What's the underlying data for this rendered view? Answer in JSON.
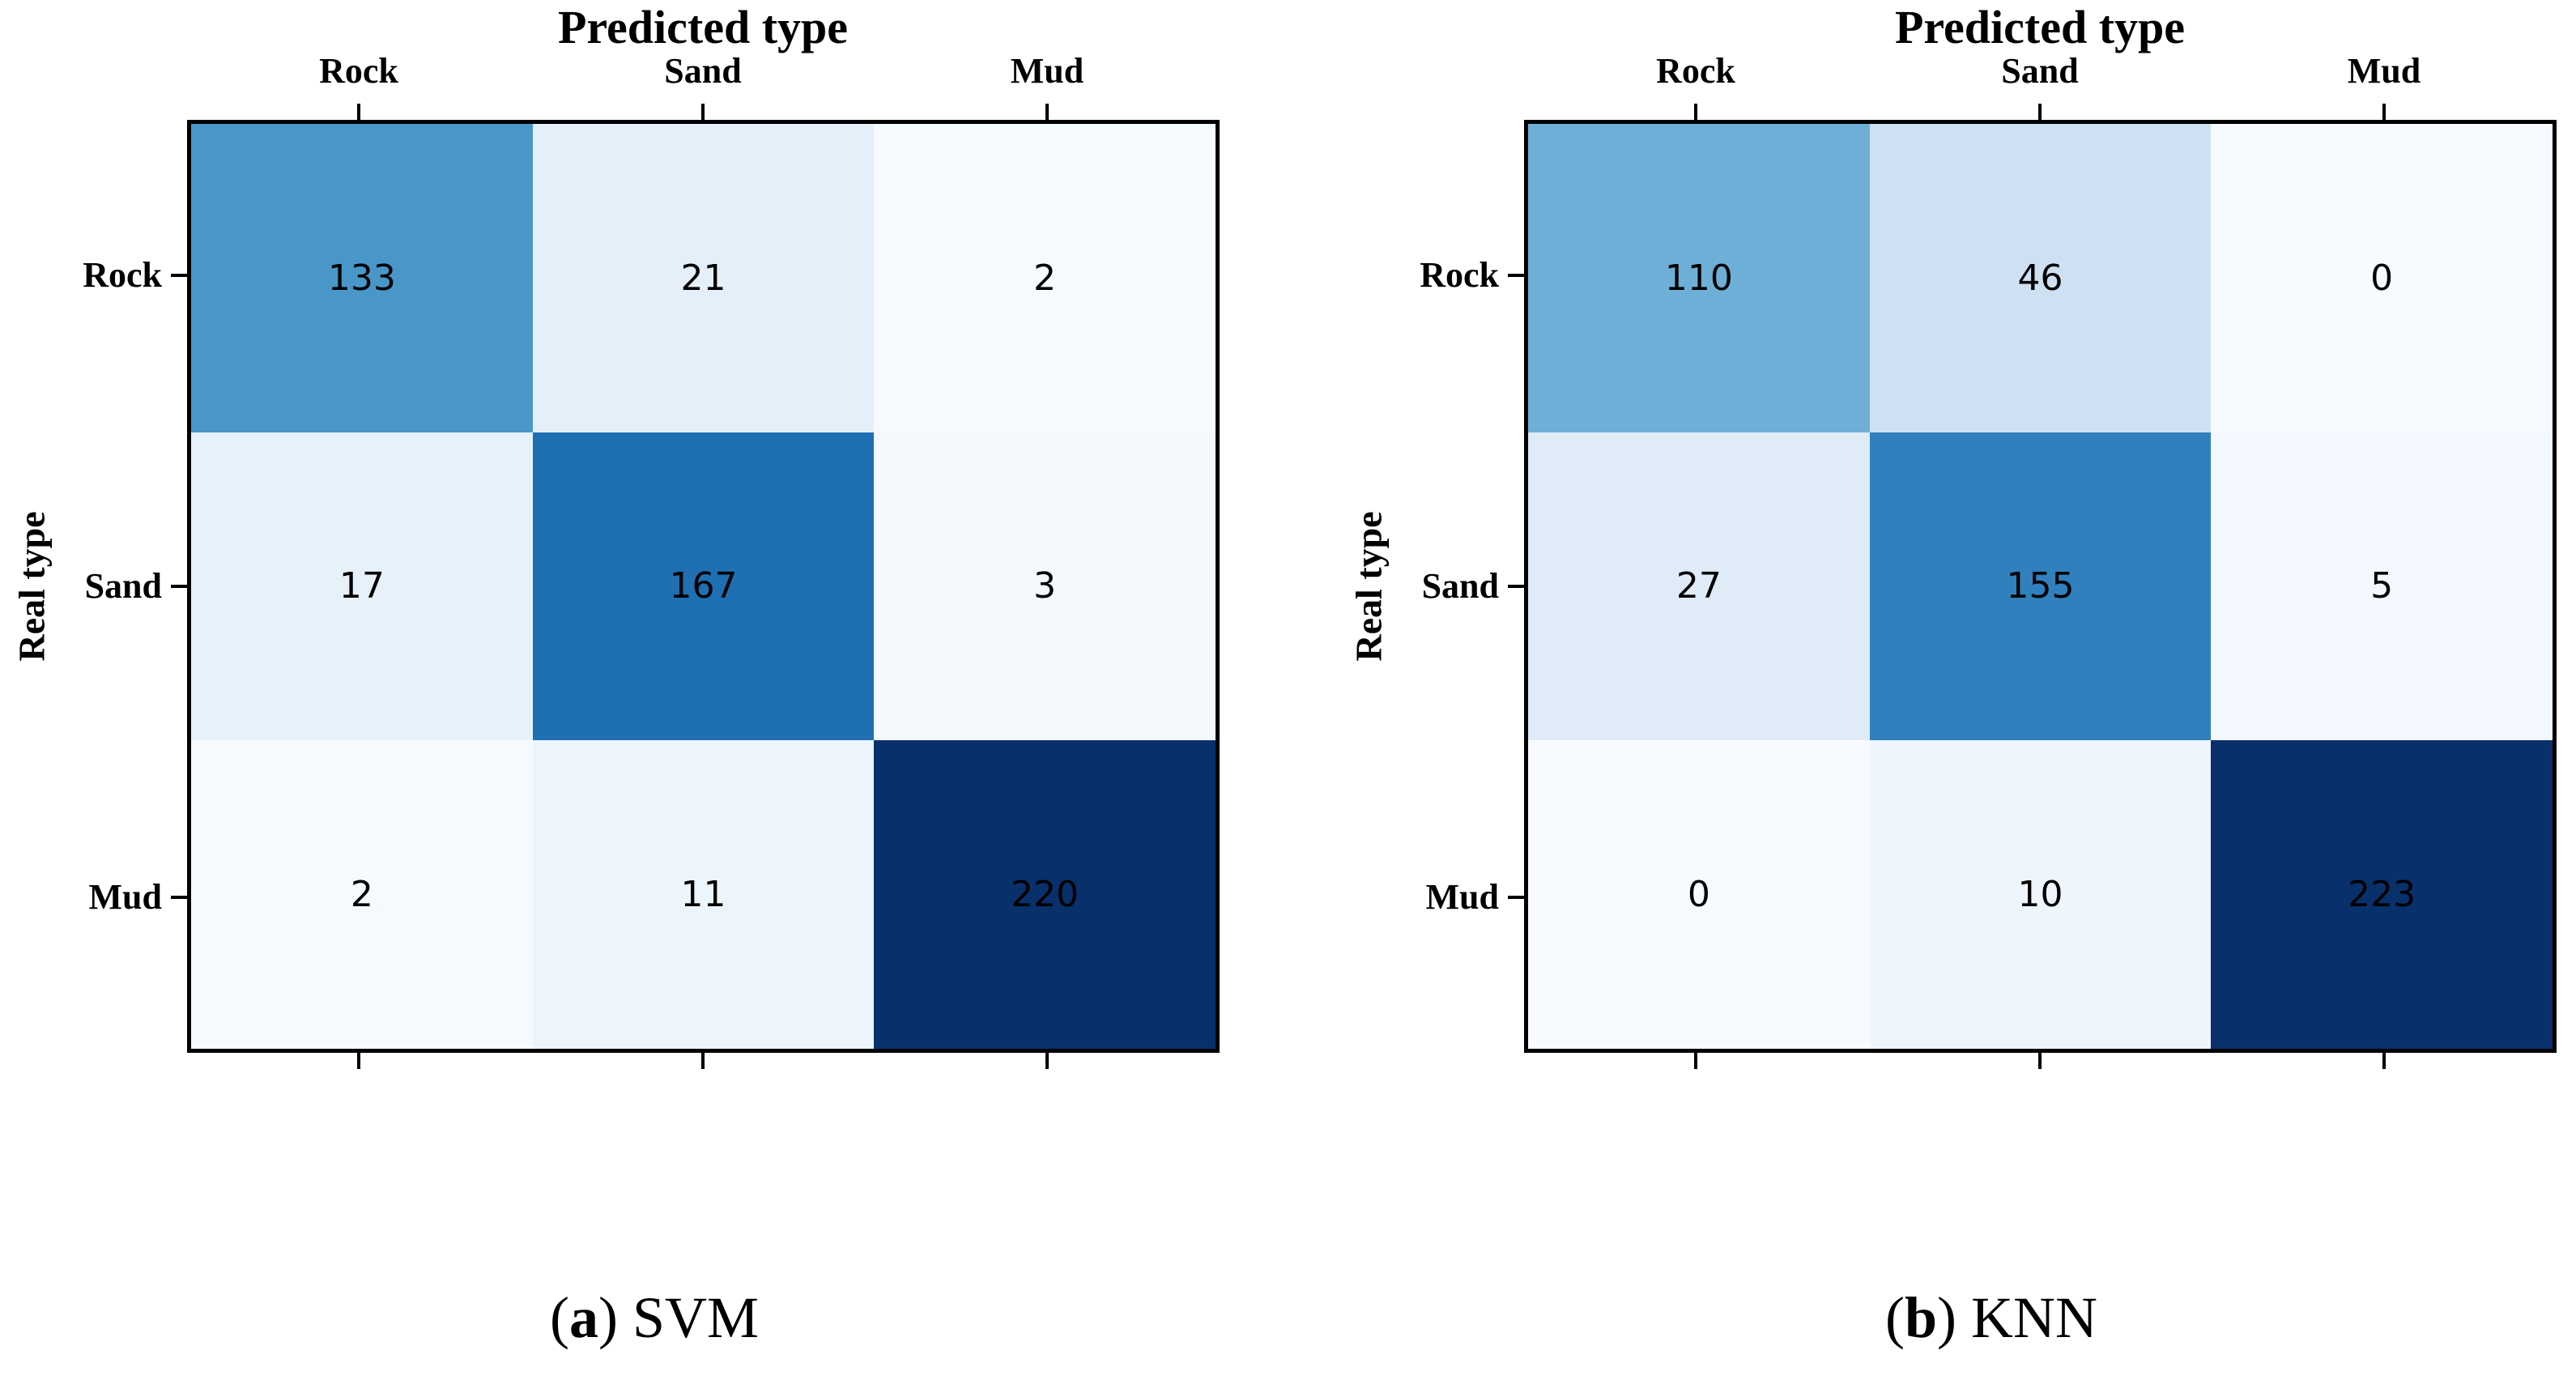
{
  "figure": {
    "background": "#ffffff",
    "colormap": "Blues",
    "frame_color": "#000000",
    "text_color": "#000000"
  },
  "chart_data": [
    {
      "type": "heatmap",
      "panel": "a",
      "title": "Predicted type",
      "xlabel": "Predicted type",
      "ylabel": "Real type",
      "x_tick_labels": [
        "Rock",
        "Sand",
        "Mud"
      ],
      "y_tick_labels": [
        "Rock",
        "Sand",
        "Mud"
      ],
      "values": [
        [
          133,
          21,
          2
        ],
        [
          17,
          167,
          3
        ],
        [
          2,
          11,
          220
        ]
      ],
      "value_range": [
        0,
        220
      ],
      "colormap": "Blues",
      "legend": "none",
      "grid": false,
      "cell_colors": [
        [
          "#4997c9",
          "#e4eff9",
          "#f5fafe"
        ],
        [
          "#e7f1fa",
          "#1f6fb3",
          "#f4f9fe"
        ],
        [
          "#f5fafe",
          "#edf5fc",
          "#08306b"
        ]
      ],
      "caption": {
        "open": "(",
        "letter": "a",
        "close": ")",
        "text": "SVM"
      }
    },
    {
      "type": "heatmap",
      "panel": "b",
      "title": "Predicted type",
      "xlabel": "Predicted type",
      "ylabel": "Real type",
      "x_tick_labels": [
        "Rock",
        "Sand",
        "Mud"
      ],
      "y_tick_labels": [
        "Rock",
        "Sand",
        "Mud"
      ],
      "values": [
        [
          110,
          46,
          0
        ],
        [
          27,
          155,
          5
        ],
        [
          0,
          10,
          223
        ]
      ],
      "value_range": [
        0,
        223
      ],
      "colormap": "Blues",
      "legend": "none",
      "grid": false,
      "cell_colors": [
        [
          "#6eafd7",
          "#cee1f2",
          "#f7fbff"
        ],
        [
          "#dfebf7",
          "#2f80bc",
          "#f2f8fe"
        ],
        [
          "#f7fbff",
          "#eef5fc",
          "#08306b"
        ]
      ],
      "caption": {
        "open": "(",
        "letter": "b",
        "close": ")",
        "text": "KNN"
      }
    }
  ]
}
